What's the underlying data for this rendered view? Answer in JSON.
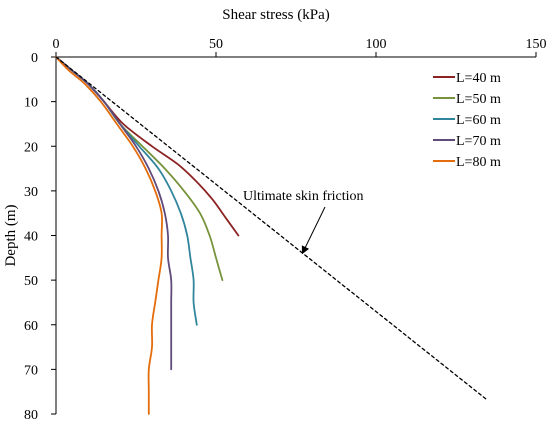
{
  "chart_data": {
    "type": "line",
    "xlabel": "Shear stress (kPa)",
    "ylabel": "Depth (m)",
    "x_axis_position": "top",
    "y_axis_inverted": true,
    "xlim": [
      0,
      150
    ],
    "ylim": [
      0,
      80
    ],
    "xticks": [
      0,
      50,
      100,
      150
    ],
    "yticks": [
      0,
      10,
      20,
      30,
      40,
      50,
      60,
      70,
      80
    ],
    "grid": false,
    "legend_position": "top-right",
    "series": [
      {
        "name": "L=40 m",
        "color": "#8B2323",
        "points": [
          [
            0,
            0
          ],
          [
            5,
            3
          ],
          [
            10,
            6
          ],
          [
            15,
            10
          ],
          [
            21,
            15
          ],
          [
            30,
            20
          ],
          [
            38,
            24
          ],
          [
            44,
            28
          ],
          [
            49,
            32
          ],
          [
            53,
            36
          ],
          [
            57,
            40
          ]
        ]
      },
      {
        "name": "L=50 m",
        "color": "#77933C",
        "points": [
          [
            0,
            0
          ],
          [
            5,
            3
          ],
          [
            10,
            6
          ],
          [
            15,
            10
          ],
          [
            20,
            15
          ],
          [
            27,
            20
          ],
          [
            34,
            25
          ],
          [
            40,
            30
          ],
          [
            45,
            35
          ],
          [
            48,
            40
          ],
          [
            50,
            45
          ],
          [
            52,
            50
          ]
        ]
      },
      {
        "name": "L=60 m",
        "color": "#31859C",
        "points": [
          [
            0,
            0
          ],
          [
            5,
            3
          ],
          [
            10,
            6
          ],
          [
            15,
            10
          ],
          [
            20,
            15
          ],
          [
            26,
            20
          ],
          [
            32,
            25
          ],
          [
            36,
            30
          ],
          [
            39,
            35
          ],
          [
            41,
            40
          ],
          [
            42,
            45
          ],
          [
            43,
            50
          ],
          [
            43,
            55
          ],
          [
            44,
            60
          ]
        ]
      },
      {
        "name": "L=70 m",
        "color": "#604A7B",
        "points": [
          [
            0,
            0
          ],
          [
            5,
            3
          ],
          [
            10,
            6
          ],
          [
            15,
            10
          ],
          [
            20,
            15
          ],
          [
            25,
            20
          ],
          [
            29,
            25
          ],
          [
            32,
            30
          ],
          [
            34,
            35
          ],
          [
            35,
            40
          ],
          [
            35,
            45
          ],
          [
            36,
            50
          ],
          [
            36,
            55
          ],
          [
            36,
            60
          ],
          [
            36,
            65
          ],
          [
            36,
            70
          ]
        ]
      },
      {
        "name": "L=80 m",
        "color": "#E46C0A",
        "points": [
          [
            0,
            0
          ],
          [
            4,
            3
          ],
          [
            9,
            6
          ],
          [
            14,
            10
          ],
          [
            19,
            15
          ],
          [
            24,
            20
          ],
          [
            28,
            25
          ],
          [
            31,
            30
          ],
          [
            33,
            35
          ],
          [
            33,
            40
          ],
          [
            33,
            45
          ],
          [
            32,
            50
          ],
          [
            31,
            55
          ],
          [
            30,
            60
          ],
          [
            30,
            65
          ],
          [
            29,
            70
          ],
          [
            29,
            75
          ],
          [
            29,
            80
          ]
        ]
      },
      {
        "name": "Ultimate skin friction",
        "color": "#000000",
        "dashed": true,
        "points": [
          [
            0,
            0
          ],
          [
            135,
            77
          ]
        ]
      }
    ],
    "annotations": [
      {
        "text": "Ultimate skin friction",
        "arrow_to": [
          77,
          44
        ]
      }
    ]
  }
}
